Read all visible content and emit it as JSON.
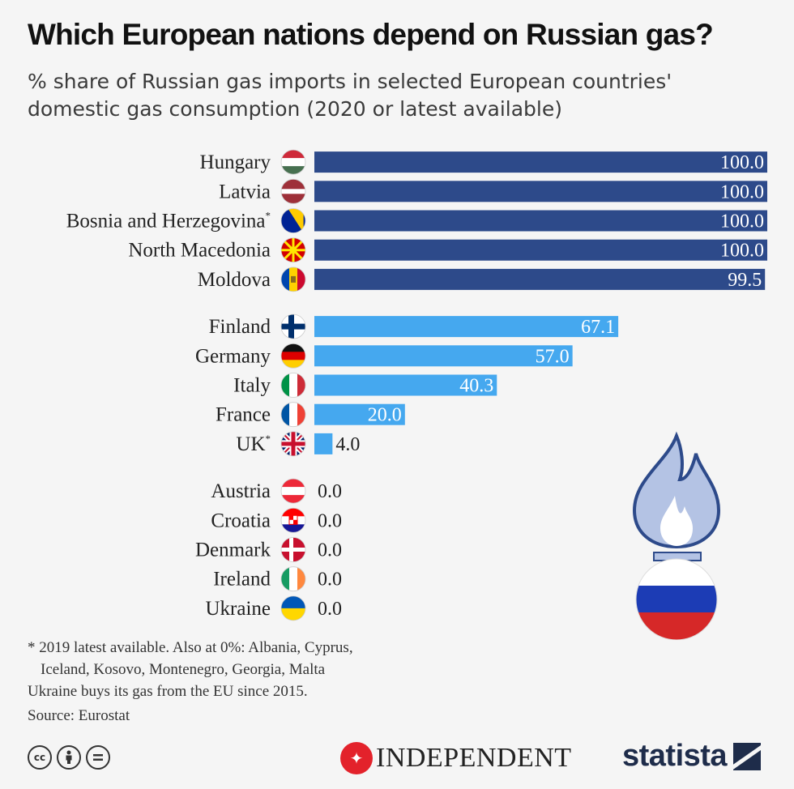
{
  "title": "Which European nations depend on Russian gas?",
  "subtitle": "% share of Russian gas imports in selected European countries' domestic gas consumption (2020 or latest available)",
  "chart_data": {
    "type": "bar",
    "orientation": "horizontal",
    "xlim": [
      0,
      100
    ],
    "categories": [
      "Hungary",
      "Latvia",
      "Bosnia and Herzegovina",
      "North Macedonia",
      "Moldova",
      "Finland",
      "Germany",
      "Italy",
      "France",
      "UK",
      "Austria",
      "Croatia",
      "Denmark",
      "Ireland",
      "Ukraine"
    ],
    "footnote_marks": [
      "",
      "",
      "*",
      "",
      "",
      "",
      "",
      "",
      "",
      "*",
      "",
      "",
      "",
      "",
      ""
    ],
    "values": [
      100.0,
      100.0,
      100.0,
      100.0,
      99.5,
      67.1,
      57.0,
      40.3,
      20.0,
      4.0,
      0.0,
      0.0,
      0.0,
      0.0,
      0.0
    ],
    "value_labels": [
      "100.0",
      "100.0",
      "100.0",
      "100.0",
      "99.5",
      "67.1",
      "57.0",
      "40.3",
      "20.0",
      "4.0",
      "0.0",
      "0.0",
      "0.0",
      "0.0",
      "0.0"
    ],
    "groups": [
      0,
      0,
      0,
      0,
      0,
      1,
      1,
      1,
      1,
      1,
      2,
      2,
      2,
      2,
      2
    ],
    "group_colors": [
      "#2d4a8a",
      "#45a8ef",
      "#45a8ef"
    ],
    "flag_icons": [
      "hungary-flag-icon",
      "latvia-flag-icon",
      "bosnia-flag-icon",
      "north-macedonia-flag-icon",
      "moldova-flag-icon",
      "finland-flag-icon",
      "germany-flag-icon",
      "italy-flag-icon",
      "france-flag-icon",
      "uk-flag-icon",
      "austria-flag-icon",
      "croatia-flag-icon",
      "denmark-flag-icon",
      "ireland-flag-icon",
      "ukraine-flag-icon"
    ]
  },
  "footnote": {
    "line1": "* 2019  latest available. Also at 0%: Albania, Cyprus,",
    "line2": "Iceland, Kosovo, Montenegro, Georgia, Malta",
    "line3": "Ukraine buys its gas from the EU since 2015."
  },
  "source": "Source: Eurostat",
  "logos": {
    "independent": "INDEPENDENT",
    "statista": "statista"
  },
  "illustration_icon": "gas-flame-russia-flag-icon",
  "colors": {
    "dark_bar": "#2d4a8a",
    "light_bar": "#45a8ef",
    "flame": "#b4c3e4"
  }
}
